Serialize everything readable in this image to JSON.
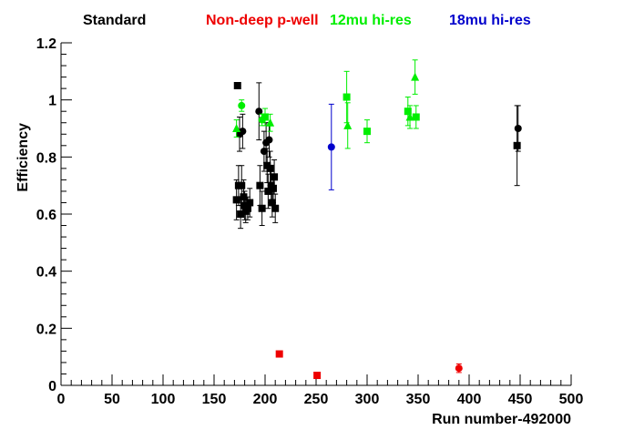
{
  "chart_data": {
    "type": "scatter",
    "title": "",
    "xlabel": "Run number-492000",
    "ylabel": "Efficiency",
    "xlim": [
      0,
      500
    ],
    "ylim": [
      0,
      1.2
    ],
    "xticks": [
      "0",
      "50",
      "100",
      "150",
      "200",
      "250",
      "300",
      "350",
      "400",
      "450",
      "500"
    ],
    "yticks": [
      "0",
      "0.2",
      "0.4",
      "0.6",
      "0.8",
      "1",
      "1.2"
    ],
    "grid": false,
    "legend_placement": "top",
    "series": [
      {
        "name": "Standard",
        "color": "#000000",
        "points": [
          {
            "x": 172,
            "y": 0.65,
            "e": 0.07,
            "m": "square"
          },
          {
            "x": 173,
            "y": 1.05,
            "e": 0.0,
            "m": "square"
          },
          {
            "x": 174,
            "y": 0.7,
            "e": 0.07,
            "m": "square"
          },
          {
            "x": 175,
            "y": 0.88,
            "e": 0.06,
            "m": "circle"
          },
          {
            "x": 176,
            "y": 0.6,
            "e": 0.05,
            "m": "square"
          },
          {
            "x": 177,
            "y": 0.7,
            "e": 0.07,
            "m": "square"
          },
          {
            "x": 178,
            "y": 0.89,
            "e": 0.06,
            "m": "circle"
          },
          {
            "x": 179,
            "y": 0.66,
            "e": 0.06,
            "m": "square"
          },
          {
            "x": 180,
            "y": 0.63,
            "e": 0.05,
            "m": "square"
          },
          {
            "x": 181,
            "y": 0.61,
            "e": 0.04,
            "m": "square"
          },
          {
            "x": 183,
            "y": 0.62,
            "e": 0.04,
            "m": "square"
          },
          {
            "x": 185,
            "y": 0.64,
            "e": 0.05,
            "m": "square"
          },
          {
            "x": 194,
            "y": 0.96,
            "e": 0.1,
            "m": "circle"
          },
          {
            "x": 195,
            "y": 0.7,
            "e": 0.07,
            "m": "square"
          },
          {
            "x": 197,
            "y": 0.62,
            "e": 0.06,
            "m": "square"
          },
          {
            "x": 199,
            "y": 0.82,
            "e": 0.07,
            "m": "circle"
          },
          {
            "x": 201,
            "y": 0.85,
            "e": 0.07,
            "m": "circle"
          },
          {
            "x": 202,
            "y": 0.77,
            "e": 0.06,
            "m": "square"
          },
          {
            "x": 203,
            "y": 0.68,
            "e": 0.06,
            "m": "square"
          },
          {
            "x": 204,
            "y": 0.86,
            "e": 0.06,
            "m": "circle"
          },
          {
            "x": 205,
            "y": 0.76,
            "e": 0.06,
            "m": "square"
          },
          {
            "x": 206,
            "y": 0.7,
            "e": 0.06,
            "m": "square"
          },
          {
            "x": 207,
            "y": 0.64,
            "e": 0.05,
            "m": "square"
          },
          {
            "x": 208,
            "y": 0.69,
            "e": 0.05,
            "m": "square"
          },
          {
            "x": 209,
            "y": 0.73,
            "e": 0.06,
            "m": "square"
          },
          {
            "x": 210,
            "y": 0.62,
            "e": 0.05,
            "m": "square"
          },
          {
            "x": 448,
            "y": 0.9,
            "e": 0.08,
            "m": "circle"
          },
          {
            "x": 447,
            "y": 0.84,
            "e": 0.14,
            "m": "square"
          }
        ]
      },
      {
        "name": "Non-deep p-well",
        "color": "#ee0000",
        "points": [
          {
            "x": 214,
            "y": 0.11,
            "e": 0.0,
            "m": "square"
          },
          {
            "x": 251,
            "y": 0.035,
            "e": 0.0,
            "m": "square"
          },
          {
            "x": 390,
            "y": 0.06,
            "e": 0.015,
            "m": "circle"
          }
        ]
      },
      {
        "name": "12mu hi-res",
        "color": "#00ee00",
        "points": [
          {
            "x": 172,
            "y": 0.9,
            "e": 0.03,
            "m": "triangle"
          },
          {
            "x": 177,
            "y": 0.98,
            "e": 0.02,
            "m": "circle"
          },
          {
            "x": 197,
            "y": 0.93,
            "e": 0.02,
            "m": "circle"
          },
          {
            "x": 200,
            "y": 0.94,
            "e": 0.03,
            "m": "square"
          },
          {
            "x": 205,
            "y": 0.92,
            "e": 0.03,
            "m": "triangle"
          },
          {
            "x": 280,
            "y": 1.01,
            "e": 0.09,
            "m": "square"
          },
          {
            "x": 281,
            "y": 0.91,
            "e": 0.08,
            "m": "triangle"
          },
          {
            "x": 300,
            "y": 0.89,
            "e": 0.04,
            "m": "square"
          },
          {
            "x": 340,
            "y": 0.96,
            "e": 0.05,
            "m": "square"
          },
          {
            "x": 342,
            "y": 0.94,
            "e": 0.04,
            "m": "triangle"
          },
          {
            "x": 347,
            "y": 1.08,
            "e": 0.06,
            "m": "triangle"
          },
          {
            "x": 348,
            "y": 0.94,
            "e": 0.04,
            "m": "square"
          }
        ]
      },
      {
        "name": "18mu hi-res",
        "color": "#0000cc",
        "points": [
          {
            "x": 265,
            "y": 0.835,
            "e": 0.15,
            "m": "circle"
          }
        ]
      }
    ]
  }
}
